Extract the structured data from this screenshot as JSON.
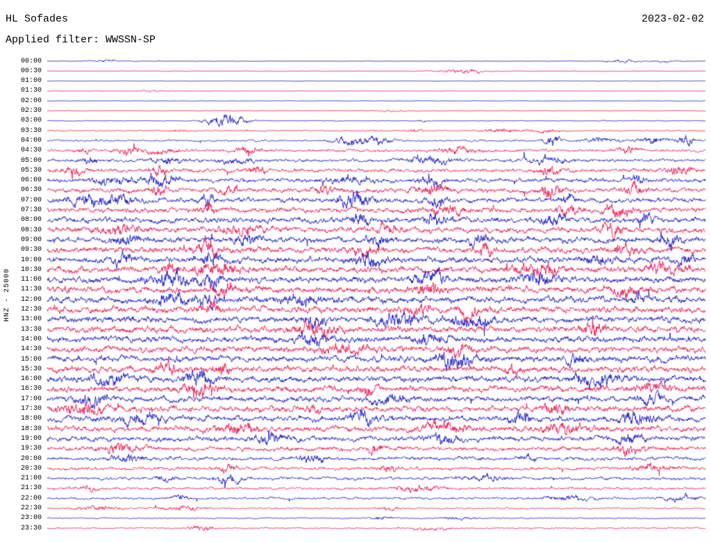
{
  "header": {
    "station": "HL Sofades",
    "date": "2023-02-02",
    "filter_label": "Applied filter: WWSSN-SP"
  },
  "y_axis_label": "HNZ - 25000",
  "colors": {
    "blue": "#1515cd",
    "red": "#ef1048",
    "text": "#000000",
    "background": "#ffffff"
  },
  "chart_data": {
    "type": "line",
    "title": "HL Sofades",
    "subtitle": "Applied filter: WWSSN-SP",
    "date": "2023-02-02",
    "ylabel": "HNZ - 25000",
    "layout": "helicorder, 48 traces of 30 minutes each, alternating blue/red",
    "row_interval_minutes": 30,
    "first_row": "00:00",
    "last_row": "23:30",
    "amplitude_units": "relative noise envelope (px half-height), bursts as [x_fraction_of_row, extra_amplitude]",
    "rows": [
      {
        "time": "00:00",
        "color": "blue",
        "amp": 0.35,
        "bursts": [
          [
            0.089,
            2.2
          ],
          [
            0.87,
            2.4
          ],
          [
            0.94,
            1.5
          ]
        ]
      },
      {
        "time": "00:30",
        "color": "red",
        "amp": 0.35,
        "bursts": [
          [
            0.63,
            4.5
          ]
        ]
      },
      {
        "time": "01:00",
        "color": "blue",
        "amp": 0.3,
        "bursts": []
      },
      {
        "time": "01:30",
        "color": "red",
        "amp": 0.3,
        "bursts": [
          [
            0.16,
            1.2
          ]
        ]
      },
      {
        "time": "02:00",
        "color": "blue",
        "amp": 0.35,
        "bursts": []
      },
      {
        "time": "02:30",
        "color": "red",
        "amp": 0.4,
        "bursts": [
          [
            0.52,
            1.5
          ]
        ]
      },
      {
        "time": "03:00",
        "color": "blue",
        "amp": 0.5,
        "bursts": [
          [
            0.271,
            11
          ],
          [
            0.57,
            1.8
          ]
        ]
      },
      {
        "time": "03:30",
        "color": "red",
        "amp": 0.9,
        "bursts": [
          [
            0.2,
            2
          ],
          [
            0.56,
            3
          ],
          [
            0.69,
            3.5
          ],
          [
            0.76,
            2.5
          ]
        ]
      },
      {
        "time": "04:00",
        "color": "blue",
        "amp": 1.5,
        "bursts": [
          [
            0.466,
            7
          ],
          [
            0.506,
            4
          ],
          [
            0.767,
            9
          ],
          [
            0.84,
            4
          ],
          [
            0.918,
            6
          ],
          [
            0.97,
            7
          ]
        ]
      },
      {
        "time": "04:30",
        "color": "red",
        "amp": 2.2,
        "bursts": [
          [
            0.055,
            4
          ],
          [
            0.121,
            6
          ],
          [
            0.171,
            5
          ],
          [
            0.308,
            5
          ],
          [
            0.625,
            5
          ],
          [
            0.883,
            5
          ]
        ]
      },
      {
        "time": "05:00",
        "color": "blue",
        "amp": 2.6,
        "bursts": [
          [
            0.063,
            6
          ],
          [
            0.181,
            5
          ],
          [
            0.287,
            5
          ],
          [
            0.58,
            6
          ],
          [
            0.76,
            5
          ]
        ]
      },
      {
        "time": "05:30",
        "color": "red",
        "amp": 3,
        "bursts": [
          [
            0.039,
            6
          ],
          [
            0.171,
            7
          ],
          [
            0.318,
            6
          ],
          [
            0.76,
            9
          ],
          [
            0.962,
            6
          ]
        ]
      },
      {
        "time": "06:00",
        "color": "blue",
        "amp": 3.4,
        "bursts": [
          [
            0.097,
            6
          ],
          [
            0.171,
            8
          ],
          [
            0.461,
            6
          ],
          [
            0.587,
            8
          ],
          [
            0.898,
            6
          ]
        ]
      },
      {
        "time": "06:30",
        "color": "red",
        "amp": 3.8,
        "bursts": [
          [
            0.169,
            11
          ],
          [
            0.276,
            7
          ],
          [
            0.419,
            6
          ],
          [
            0.582,
            7
          ],
          [
            0.767,
            10
          ],
          [
            0.893,
            7
          ]
        ]
      },
      {
        "time": "07:00",
        "color": "blue",
        "amp": 4,
        "bursts": [
          [
            0.055,
            7
          ],
          [
            0.102,
            7
          ],
          [
            0.245,
            6
          ],
          [
            0.466,
            12
          ],
          [
            0.593,
            8
          ],
          [
            0.793,
            7
          ]
        ]
      },
      {
        "time": "07:30",
        "color": "red",
        "amp": 4.2,
        "bursts": [
          [
            0.245,
            8
          ],
          [
            0.603,
            7
          ],
          [
            0.793,
            9
          ],
          [
            0.867,
            7
          ]
        ]
      },
      {
        "time": "08:00",
        "color": "blue",
        "amp": 4.4,
        "bursts": [
          [
            0.472,
            13
          ],
          [
            0.593,
            8
          ],
          [
            0.767,
            9
          ],
          [
            0.909,
            7
          ]
        ]
      },
      {
        "time": "08:30",
        "color": "red",
        "amp": 4.6,
        "bursts": [
          [
            0.108,
            7
          ],
          [
            0.297,
            7
          ],
          [
            0.519,
            7
          ],
          [
            0.857,
            10
          ]
        ]
      },
      {
        "time": "09:00",
        "color": "blue",
        "amp": 4.8,
        "bursts": [
          [
            0.123,
            8
          ],
          [
            0.303,
            8
          ],
          [
            0.503,
            9
          ],
          [
            0.656,
            8
          ],
          [
            0.946,
            8
          ]
        ]
      },
      {
        "time": "09:30",
        "color": "red",
        "amp": 4.8,
        "bursts": [
          [
            0.245,
            8
          ],
          [
            0.482,
            8
          ],
          [
            0.667,
            8
          ],
          [
            0.878,
            8
          ]
        ]
      },
      {
        "time": "10:00",
        "color": "blue",
        "amp": 5,
        "bursts": [
          [
            0.113,
            9
          ],
          [
            0.245,
            9
          ],
          [
            0.487,
            9
          ],
          [
            0.835,
            8
          ],
          [
            0.972,
            8
          ]
        ]
      },
      {
        "time": "10:30",
        "color": "red",
        "amp": 5,
        "bursts": [
          [
            0.187,
            9
          ],
          [
            0.255,
            9
          ],
          [
            0.746,
            10
          ],
          [
            0.941,
            8
          ]
        ]
      },
      {
        "time": "11:00",
        "color": "blue",
        "amp": 5.2,
        "bursts": [
          [
            0.187,
            12
          ],
          [
            0.25,
            12
          ],
          [
            0.582,
            9
          ],
          [
            0.746,
            10
          ]
        ]
      },
      {
        "time": "11:30",
        "color": "red",
        "amp": 5.2,
        "bursts": [
          [
            0.266,
            10
          ],
          [
            0.577,
            10
          ],
          [
            0.878,
            8
          ]
        ]
      },
      {
        "time": "12:00",
        "color": "blue",
        "amp": 5.2,
        "bursts": [
          [
            0.187,
            12
          ],
          [
            0.245,
            10
          ],
          [
            0.382,
            8
          ],
          [
            0.898,
            8
          ]
        ]
      },
      {
        "time": "12:30",
        "color": "red",
        "amp": 5.2,
        "bursts": [
          [
            0.245,
            9
          ],
          [
            0.566,
            10
          ],
          [
            0.645,
            9
          ]
        ]
      },
      {
        "time": "13:00",
        "color": "blue",
        "amp": 5.2,
        "bursts": [
          [
            0.408,
            10
          ],
          [
            0.535,
            11
          ],
          [
            0.645,
            9
          ]
        ]
      },
      {
        "time": "13:30",
        "color": "red",
        "amp": 5.2,
        "bursts": [
          [
            0.408,
            9
          ],
          [
            0.83,
            10
          ]
        ]
      },
      {
        "time": "14:00",
        "color": "blue",
        "amp": 5,
        "bursts": [
          [
            0.408,
            10
          ],
          [
            0.582,
            8
          ]
        ]
      },
      {
        "time": "14:30",
        "color": "red",
        "amp": 5,
        "bursts": [
          [
            0.455,
            8
          ],
          [
            0.625,
            10
          ]
        ]
      },
      {
        "time": "15:00",
        "color": "blue",
        "amp": 5,
        "bursts": [
          [
            0.62,
            11
          ],
          [
            0.803,
            8
          ]
        ]
      },
      {
        "time": "15:30",
        "color": "red",
        "amp": 5,
        "bursts": [
          [
            0.181,
            9
          ],
          [
            0.266,
            9
          ],
          [
            0.708,
            8
          ]
        ]
      },
      {
        "time": "16:00",
        "color": "blue",
        "amp": 5,
        "bursts": [
          [
            0.097,
            8
          ],
          [
            0.234,
            9
          ],
          [
            0.836,
            9
          ]
        ]
      },
      {
        "time": "16:30",
        "color": "red",
        "amp": 5,
        "bursts": [
          [
            0.234,
            10
          ],
          [
            0.487,
            8
          ],
          [
            0.92,
            8
          ]
        ]
      },
      {
        "time": "17:00",
        "color": "blue",
        "amp": 4.6,
        "bursts": [
          [
            0.065,
            8
          ],
          [
            0.519,
            8
          ],
          [
            0.92,
            9
          ]
        ]
      },
      {
        "time": "17:30",
        "color": "red",
        "amp": 4.6,
        "bursts": [
          [
            0.055,
            9
          ],
          [
            0.403,
            8
          ],
          [
            0.772,
            8
          ]
        ]
      },
      {
        "time": "18:00",
        "color": "blue",
        "amp": 4.6,
        "bursts": [
          [
            0.139,
            8
          ],
          [
            0.477,
            9
          ],
          [
            0.719,
            9
          ],
          [
            0.898,
            9
          ]
        ]
      },
      {
        "time": "18:30",
        "color": "red",
        "amp": 4.6,
        "bursts": [
          [
            0.287,
            8
          ],
          [
            0.603,
            8
          ],
          [
            0.783,
            9
          ]
        ]
      },
      {
        "time": "19:00",
        "color": "blue",
        "amp": 4.2,
        "bursts": [
          [
            0.34,
            8
          ],
          [
            0.603,
            8
          ],
          [
            0.883,
            10
          ]
        ]
      },
      {
        "time": "19:30",
        "color": "red",
        "amp": 3.6,
        "bursts": [
          [
            0.113,
            7
          ],
          [
            0.498,
            7
          ],
          [
            0.883,
            8
          ]
        ]
      },
      {
        "time": "20:00",
        "color": "blue",
        "amp": 3,
        "bursts": [
          [
            0.123,
            6
          ],
          [
            0.403,
            5
          ],
          [
            0.73,
            5
          ]
        ]
      },
      {
        "time": "20:30",
        "color": "red",
        "amp": 2.6,
        "bursts": [
          [
            0.276,
            5
          ],
          [
            0.519,
            5
          ],
          [
            0.92,
            6
          ]
        ]
      },
      {
        "time": "21:00",
        "color": "blue",
        "amp": 2.4,
        "bursts": [
          [
            0.181,
            5
          ],
          [
            0.276,
            6
          ],
          [
            0.667,
            4
          ]
        ]
      },
      {
        "time": "21:30",
        "color": "red",
        "amp": 2,
        "bursts": [
          [
            0.065,
            4
          ],
          [
            0.561,
            5
          ]
        ]
      },
      {
        "time": "22:00",
        "color": "blue",
        "amp": 1.8,
        "bursts": [
          [
            0.203,
            4
          ],
          [
            0.793,
            4
          ],
          [
            0.962,
            4
          ]
        ]
      },
      {
        "time": "22:30",
        "color": "red",
        "amp": 1.2,
        "bursts": [
          [
            0.076,
            4
          ],
          [
            0.203,
            4
          ],
          [
            0.519,
            3
          ]
        ]
      },
      {
        "time": "23:00",
        "color": "blue",
        "amp": 0.9,
        "bursts": [
          [
            0.508,
            2.5
          ],
          [
            0.625,
            2
          ]
        ]
      },
      {
        "time": "23:30",
        "color": "red",
        "amp": 1.0,
        "bursts": [
          [
            0.234,
            5
          ],
          [
            0.582,
            3
          ]
        ]
      }
    ]
  }
}
